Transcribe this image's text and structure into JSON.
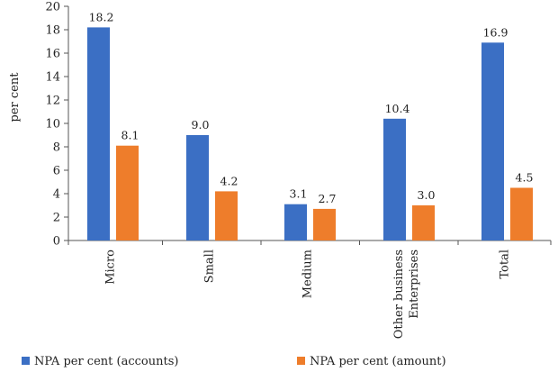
{
  "chart_data": {
    "type": "bar",
    "ylabel": "per cent",
    "ylim": [
      0,
      20
    ],
    "yticks": [
      0,
      2,
      4,
      6,
      8,
      10,
      12,
      14,
      16,
      18,
      20
    ],
    "categories": [
      [
        "Micro"
      ],
      [
        "Small"
      ],
      [
        "Medium"
      ],
      [
        "Other business",
        "Enterprises"
      ],
      [
        "Total"
      ]
    ],
    "series": [
      {
        "name": "NPA per cent (accounts)",
        "color": "#3b6fc4",
        "values": [
          18.2,
          9.0,
          3.1,
          10.4,
          16.9
        ],
        "labels": [
          "18.2",
          "9.0",
          "3.1",
          "10.4",
          "16.9"
        ]
      },
      {
        "name": "NPA per cent (amount)",
        "color": "#ee7d2b",
        "values": [
          8.1,
          4.2,
          2.7,
          3.0,
          4.5
        ],
        "labels": [
          "8.1",
          "4.2",
          "2.7",
          "3.0",
          "4.5"
        ]
      }
    ],
    "legend_position": "bottom"
  }
}
